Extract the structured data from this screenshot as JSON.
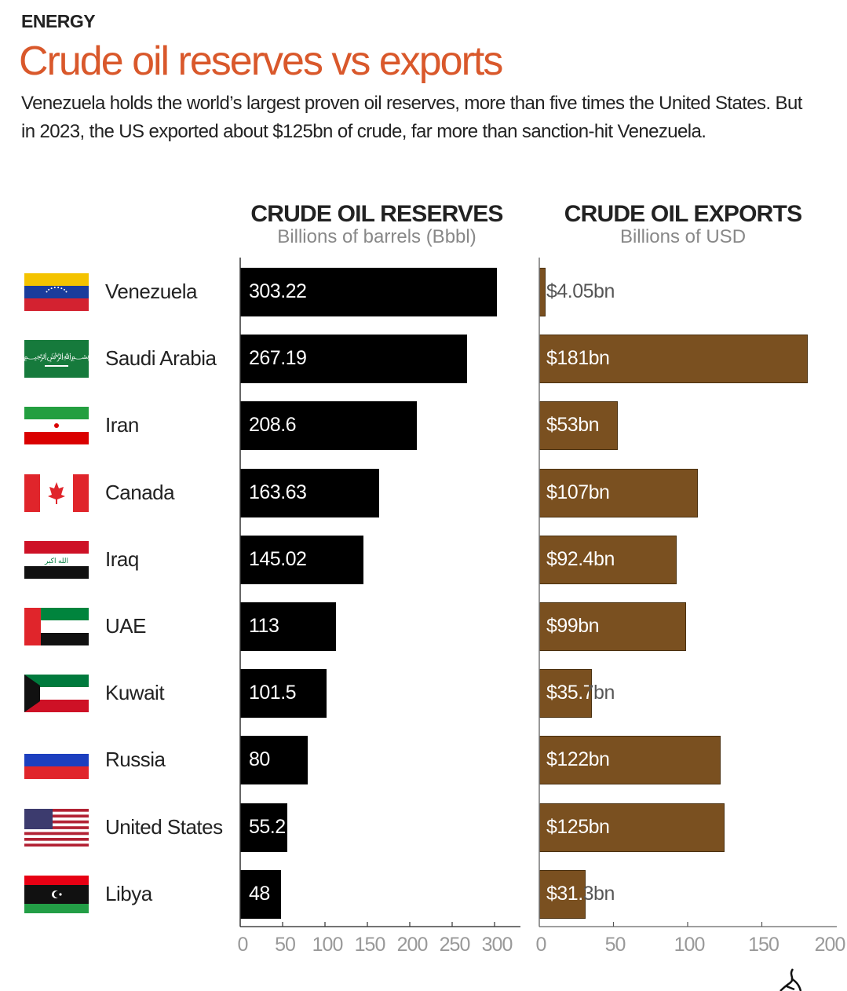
{
  "header": {
    "kicker": "ENERGY",
    "title": "Crude oil reserves vs exports",
    "subtitle": "Venezuela holds the world’s largest proven oil reserves, more than five times the United States. But in 2023, the US exported about $125bn of crude, far more than sanction-hit Venezuela."
  },
  "chart_data": [
    {
      "type": "bar",
      "orientation": "horizontal",
      "title": "CRUDE OIL RESERVES",
      "subtitle": "Billions of barrels (Bbbl)",
      "categories": [
        "Venezuela",
        "Saudi Arabia",
        "Iran",
        "Canada",
        "Iraq",
        "UAE",
        "Kuwait",
        "Russia",
        "United States",
        "Libya"
      ],
      "values": [
        303.22,
        267.19,
        208.6,
        163.63,
        145.02,
        113,
        101.5,
        80,
        55.2,
        48
      ],
      "labels": [
        "303.22",
        "267.19",
        "208.6",
        "163.63",
        "145.02",
        "113",
        "101.5",
        "80",
        "55.2",
        "48"
      ],
      "xlim": [
        0,
        330
      ],
      "ticks": [
        0,
        50,
        100,
        150,
        200,
        250,
        300
      ],
      "color": "#000000"
    },
    {
      "type": "bar",
      "orientation": "horizontal",
      "title": "CRUDE OIL EXPORTS",
      "subtitle": "Billions of USD",
      "categories": [
        "Venezuela",
        "Saudi Arabia",
        "Iran",
        "Canada",
        "Iraq",
        "UAE",
        "Kuwait",
        "Russia",
        "United States",
        "Libya"
      ],
      "values": [
        4.05,
        181,
        53,
        107,
        92.4,
        99,
        35.7,
        122,
        125,
        31.3
      ],
      "labels": [
        "$4.05bn",
        "$181bn",
        "$53bn",
        "$107bn",
        "$92.4bn",
        "$99bn",
        "$35.7bn",
        "$122bn",
        "$125bn",
        "$31.3bn"
      ],
      "xlim": [
        0,
        200
      ],
      "ticks": [
        0,
        50,
        100,
        150,
        200
      ],
      "color": "#7a5020"
    }
  ],
  "flags": [
    "venezuela-flag",
    "saudi-arabia-flag",
    "iran-flag",
    "canada-flag",
    "iraq-flag",
    "uae-flag",
    "kuwait-flag",
    "russia-flag",
    "united-states-flag",
    "libya-flag"
  ]
}
